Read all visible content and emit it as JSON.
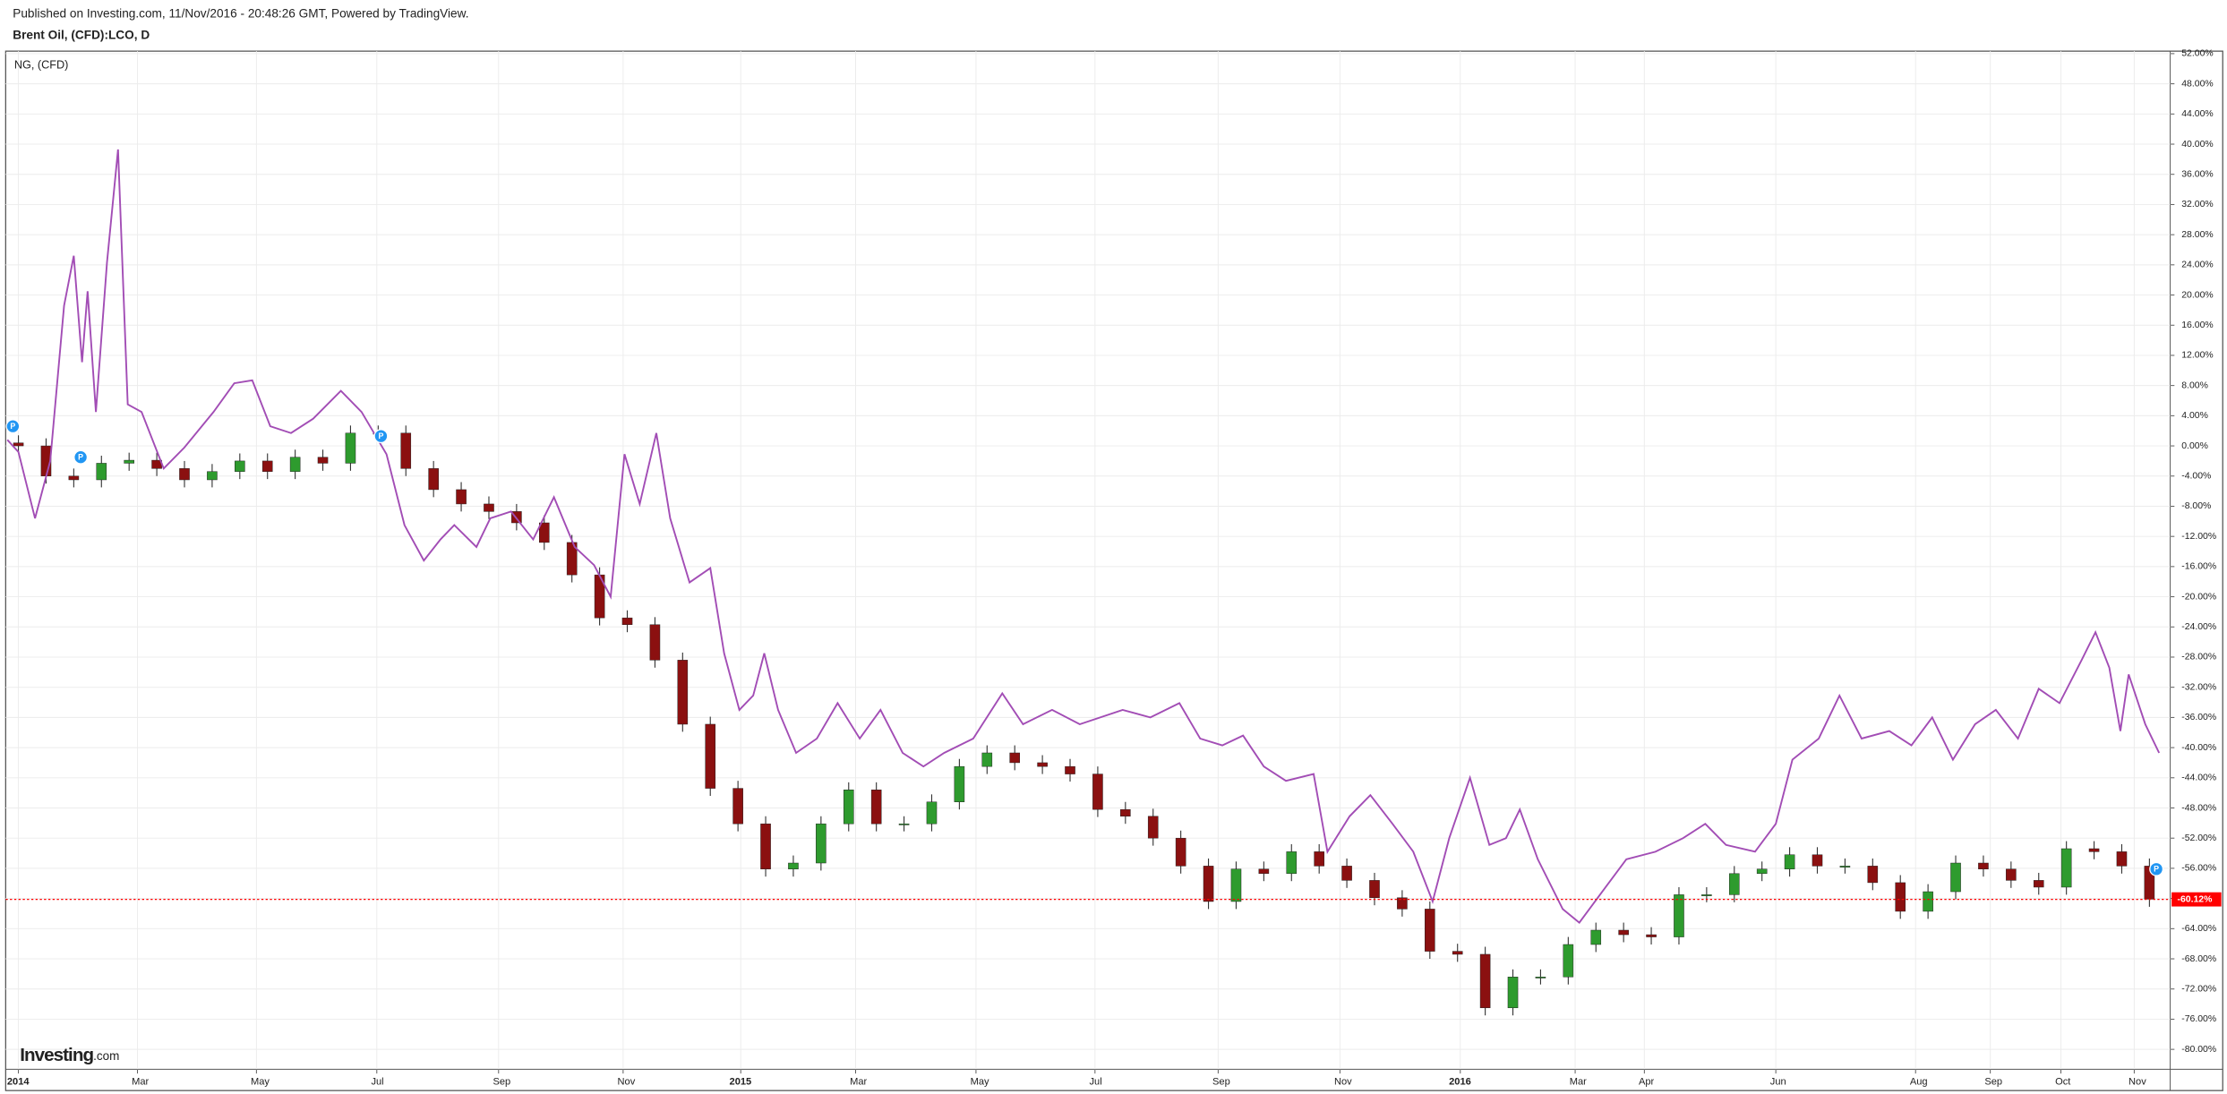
{
  "chart_data": {
    "type": "candlestick",
    "header": "Published on Investing.com, 11/Nov/2016 - 20:48:26 GMT, Powered by TradingView.",
    "logo": "Investing",
    "logo_suffix": ".com",
    "xlim": [
      -0.92,
      155.5
    ],
    "ylim": [
      -82.64,
      52.33
    ],
    "grid": true,
    "xticks": [
      {
        "value": 0,
        "label": "2014"
      },
      {
        "value": 8.6,
        "label": "Mar"
      },
      {
        "value": 17.2,
        "label": "May"
      },
      {
        "value": 25.9,
        "label": "Jul"
      },
      {
        "value": 34.7,
        "label": "Sep"
      },
      {
        "value": 43.7,
        "label": "Nov"
      },
      {
        "value": 52.2,
        "label": "2015"
      },
      {
        "value": 60.5,
        "label": "Mar"
      },
      {
        "value": 69.2,
        "label": "May"
      },
      {
        "value": 77.8,
        "label": "Jul"
      },
      {
        "value": 86.7,
        "label": "Sep"
      },
      {
        "value": 95.5,
        "label": "Nov"
      },
      {
        "value": 104.2,
        "label": "2016"
      },
      {
        "value": 112.5,
        "label": "Mar"
      },
      {
        "value": 117.5,
        "label": "Apr"
      },
      {
        "value": 127,
        "label": "Jun"
      },
      {
        "value": 137.1,
        "label": "Aug"
      },
      {
        "value": 142.5,
        "label": "Sep"
      },
      {
        "value": 147.6,
        "label": "Oct"
      },
      {
        "value": 152.9,
        "label": "Nov"
      }
    ],
    "yticks": [
      {
        "value": 52,
        "label": "52.00%"
      },
      {
        "value": 48,
        "label": "48.00%"
      },
      {
        "value": 44,
        "label": "44.00%"
      },
      {
        "value": 40,
        "label": "40.00%"
      },
      {
        "value": 36,
        "label": "36.00%"
      },
      {
        "value": 32,
        "label": "32.00%"
      },
      {
        "value": 28,
        "label": "28.00%"
      },
      {
        "value": 24,
        "label": "24.00%"
      },
      {
        "value": 20,
        "label": "20.00%"
      },
      {
        "value": 16,
        "label": "16.00%"
      },
      {
        "value": 12,
        "label": "12.00%"
      },
      {
        "value": 8,
        "label": "8.00%"
      },
      {
        "value": 4,
        "label": "4.00%"
      },
      {
        "value": 0,
        "label": "0.00%"
      },
      {
        "value": -4,
        "label": "-4.00%"
      },
      {
        "value": -8,
        "label": "-8.00%"
      },
      {
        "value": -12,
        "label": "-12.00%"
      },
      {
        "value": -16,
        "label": "-16.00%"
      },
      {
        "value": -20,
        "label": "-20.00%"
      },
      {
        "value": -24,
        "label": "-24.00%"
      },
      {
        "value": -28,
        "label": "-28.00%"
      },
      {
        "value": -32,
        "label": "-32.00%"
      },
      {
        "value": -36,
        "label": "-36.00%"
      },
      {
        "value": -40,
        "label": "-40.00%"
      },
      {
        "value": -44,
        "label": "-44.00%"
      },
      {
        "value": -48,
        "label": "-48.00%"
      },
      {
        "value": -52,
        "label": "-52.00%"
      },
      {
        "value": -56,
        "label": "-56.00%"
      },
      {
        "value": -60,
        "label": "-60.00%"
      },
      {
        "value": -64,
        "label": "-64.00%"
      },
      {
        "value": -68,
        "label": "-68.00%"
      },
      {
        "value": -72,
        "label": "-72.00%"
      },
      {
        "value": -76,
        "label": "-76.00%"
      },
      {
        "value": -80,
        "label": "-80.00%"
      }
    ],
    "series": [
      {
        "name": "Brent Oil, (CFD):LCO, D",
        "type": "candlestick",
        "up_color": "#2e9b2e",
        "down_color": "#8b1010",
        "x": [
          0,
          2,
          4,
          6,
          8,
          10,
          12,
          14,
          16,
          18,
          20,
          22,
          24,
          26,
          28,
          30,
          32,
          34,
          36,
          38,
          40,
          42,
          44,
          46,
          48,
          50,
          52,
          54,
          56,
          58,
          60,
          62,
          64,
          66,
          68,
          70,
          72,
          74,
          76,
          78,
          80,
          82,
          84,
          86,
          88,
          90,
          92,
          94,
          96,
          98,
          100,
          102,
          104,
          106,
          108,
          110,
          112,
          114,
          116,
          118,
          120,
          122,
          124,
          126,
          128,
          130,
          132,
          134,
          136,
          138,
          140,
          142,
          144,
          146,
          148,
          150,
          152,
          154
        ],
        "open": [
          0.4,
          0,
          -4,
          -4.5,
          -2.3,
          -1.9,
          -3,
          -4.5,
          -3.4,
          -2,
          -3.4,
          -1.5,
          -2.3,
          1.7,
          1.7,
          -3,
          -5.8,
          -7.7,
          -8.7,
          -10.2,
          -12.8,
          -17.1,
          -22.8,
          -23.7,
          -28.4,
          -36.9,
          -45.4,
          -50.1,
          -56.1,
          -55.3,
          -50.1,
          -45.6,
          -50.1,
          -50.1,
          -47.2,
          -42.5,
          -40.7,
          -42,
          -42.5,
          -43.5,
          -48.2,
          -49.1,
          -52,
          -55.7,
          -60.4,
          -56.1,
          -56.7,
          -53.8,
          -55.7,
          -57.6,
          -59.9,
          -61.4,
          -67,
          -67.4,
          -74.5,
          -70.4,
          -70.4,
          -66.1,
          -64.2,
          -64.8,
          -65.1,
          -59.5,
          -59.5,
          -56.7,
          -56.1,
          -54.2,
          -55.7,
          -55.7,
          -57.9,
          -61.7,
          -59.1,
          -55.3,
          -56.1,
          -57.6,
          -58.5,
          -53.4,
          -53.8,
          -55.7
        ],
        "high": [
          1.4,
          1,
          -3,
          -1.3,
          -0.9,
          -0.9,
          -2,
          -2.4,
          -1,
          -1,
          -0.5,
          -0.5,
          2.7,
          2.7,
          2.7,
          -2,
          -4.8,
          -6.7,
          -7.7,
          -9.2,
          -11.8,
          -16.1,
          -21.8,
          -22.7,
          -27.4,
          -35.9,
          -44.4,
          -49.1,
          -54.3,
          -49.1,
          -44.6,
          -44.6,
          -49.1,
          -46.2,
          -41.5,
          -39.7,
          -39.7,
          -41,
          -41.5,
          -42.5,
          -47.2,
          -48.1,
          -51,
          -54.7,
          -55.1,
          -55.1,
          -52.8,
          -52.8,
          -54.7,
          -56.6,
          -58.9,
          -60.4,
          -66,
          -66.4,
          -69.4,
          -69.4,
          -65.1,
          -63.2,
          -63.2,
          -63.8,
          -58.5,
          -58.5,
          -55.7,
          -55.1,
          -53.2,
          -53.2,
          -54.7,
          -54.7,
          -56.9,
          -58.1,
          -54.3,
          -54.3,
          -55.1,
          -56.6,
          -52.4,
          -52.4,
          -52.8,
          -54.7
        ],
        "low": [
          -1,
          -5,
          -5.5,
          -5.5,
          -3.3,
          -4,
          -5.5,
          -5.5,
          -4.4,
          -4.4,
          -4.4,
          -3.3,
          -3.3,
          0.7,
          -4,
          -6.8,
          -8.7,
          -9.7,
          -11.2,
          -13.8,
          -18.1,
          -23.8,
          -24.7,
          -29.4,
          -37.9,
          -46.4,
          -51.1,
          -57.1,
          -57.1,
          -56.3,
          -51.1,
          -51.1,
          -51.1,
          -51.1,
          -48.2,
          -43.5,
          -43,
          -43.5,
          -44.5,
          -49.2,
          -50.1,
          -53,
          -56.7,
          -61.4,
          -61.4,
          -57.7,
          -57.7,
          -56.7,
          -58.6,
          -60.9,
          -62.4,
          -68,
          -68.4,
          -75.5,
          -75.5,
          -71.4,
          -71.4,
          -67.1,
          -65.8,
          -66.1,
          -66.1,
          -60.5,
          -60.5,
          -57.7,
          -57.1,
          -56.7,
          -56.7,
          -58.9,
          -62.7,
          -62.7,
          -60.1,
          -57.1,
          -58.6,
          -59.5,
          -59.5,
          -54.8,
          -56.7,
          -61.1
        ],
        "close": [
          0,
          -4,
          -4.5,
          -2.3,
          -1.9,
          -3,
          -4.5,
          -3.4,
          -2,
          -3.4,
          -1.5,
          -2.3,
          1.7,
          1.7,
          -3,
          -5.8,
          -7.7,
          -8.7,
          -10.2,
          -12.8,
          -17.1,
          -22.8,
          -23.7,
          -28.4,
          -36.9,
          -45.4,
          -50.1,
          -56.1,
          -55.3,
          -50.1,
          -45.6,
          -50.1,
          -50.1,
          -47.2,
          -42.5,
          -40.7,
          -42,
          -42.5,
          -43.5,
          -48.2,
          -49.1,
          -52,
          -55.7,
          -60.4,
          -56.1,
          -56.7,
          -53.8,
          -55.7,
          -57.6,
          -59.9,
          -61.4,
          -67,
          -67.4,
          -74.5,
          -70.4,
          -70.4,
          -66.1,
          -64.2,
          -64.8,
          -65.1,
          -59.5,
          -59.5,
          -56.7,
          -56.1,
          -54.2,
          -55.7,
          -55.7,
          -57.9,
          -61.7,
          -59.1,
          -55.3,
          -56.1,
          -57.6,
          -58.5,
          -53.4,
          -53.8,
          -55.7,
          -60.1
        ]
      },
      {
        "name": "NG,  (CFD)",
        "type": "line",
        "color": "#a24db5",
        "x": [
          -0.8,
          0,
          1.2,
          2.3,
          3.3,
          4,
          4.6,
          5,
          5.6,
          6.4,
          7.2,
          7.9,
          8.9,
          10.5,
          12,
          14.1,
          15.6,
          16.9,
          18.2,
          19.7,
          21.3,
          23.3,
          24.8,
          26.6,
          27.9,
          29.3,
          30.5,
          31.5,
          33.1,
          34.1,
          35.6,
          37.2,
          38.7,
          40.2,
          41.6,
          42.8,
          43.8,
          44.9,
          46.1,
          47.1,
          48.5,
          50,
          51,
          52.1,
          53.1,
          53.9,
          54.9,
          56.2,
          57.7,
          59.2,
          60.8,
          62.3,
          63.9,
          65.4,
          66.9,
          69,
          71.1,
          72.6,
          74.7,
          76.7,
          79.8,
          81.8,
          83.9,
          85.4,
          87,
          88.5,
          90,
          91.6,
          93.6,
          94.6,
          96.2,
          97.7,
          99.3,
          100.8,
          102.2,
          103.4,
          104.9,
          106.3,
          107.5,
          108.5,
          109.8,
          111.6,
          112.8,
          114.7,
          116.2,
          118.3,
          120.3,
          121.9,
          123.4,
          125.5,
          127,
          128.2,
          130.1,
          131.6,
          133.2,
          135.2,
          136.8,
          138.3,
          139.8,
          141.4,
          142.9,
          144.5,
          146,
          147.5,
          149.1,
          150.1,
          151.1,
          151.9,
          152.5,
          153.7,
          154.7
        ],
        "values": [
          0.8,
          -0.8,
          -9.6,
          -2,
          18.6,
          25.2,
          11.1,
          20.5,
          4.5,
          24.3,
          39.3,
          5.5,
          4.5,
          -3,
          -0.2,
          4.5,
          8.3,
          8.7,
          2.6,
          1.7,
          3.6,
          7.3,
          4.5,
          -1.1,
          -10.5,
          -15.2,
          -12.4,
          -10.5,
          -13.4,
          -9.6,
          -8.7,
          -12.4,
          -6.8,
          -13.4,
          -15.8,
          -20,
          -1.1,
          -7.7,
          1.7,
          -9.6,
          -18.1,
          -16.2,
          -27.5,
          -35,
          -33.1,
          -27.5,
          -35,
          -40.7,
          -38.8,
          -34.1,
          -38.8,
          -35,
          -40.7,
          -42.5,
          -40.7,
          -38.8,
          -32.8,
          -36.9,
          -35,
          -36.9,
          -35,
          -36,
          -34.1,
          -38.8,
          -39.7,
          -38.4,
          -42.5,
          -44.4,
          -43.5,
          -53.8,
          -49.1,
          -46.3,
          -50.1,
          -53.8,
          -60.4,
          -52,
          -44,
          -52.9,
          -52,
          -48.2,
          -54.8,
          -61.4,
          -63.2,
          -58.5,
          -54.8,
          -53.8,
          -52,
          -50.1,
          -52.9,
          -53.8,
          -50.1,
          -41.6,
          -38.8,
          -33.1,
          -38.8,
          -37.8,
          -39.7,
          -36,
          -41.6,
          -36.9,
          -35,
          -38.8,
          -32.2,
          -34.1,
          -28.4,
          -24.7,
          -29.4,
          -37.8,
          -30.3,
          -36.9,
          -40.7
        ]
      }
    ],
    "last_value": {
      "value": -60.12,
      "label": "-60.12%"
    },
    "last_value_color": "#ff0000",
    "markers": {
      "label": "P",
      "color": "#2196f3",
      "x": [
        -0.4,
        4.5,
        26.2,
        154.5
      ],
      "y": [
        2.6,
        -1.5,
        1.3,
        -56.1
      ]
    }
  }
}
